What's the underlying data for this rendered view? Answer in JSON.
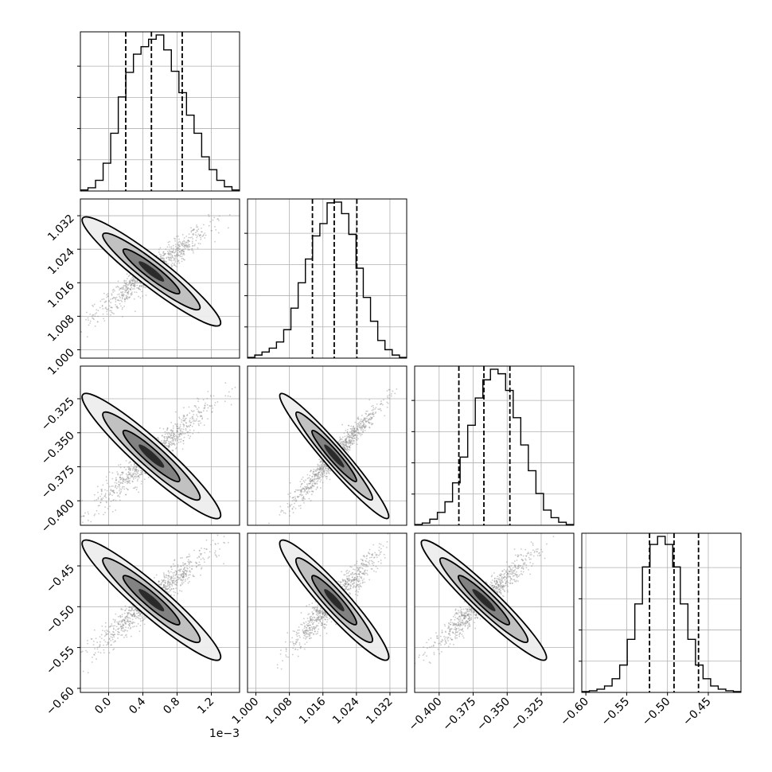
{
  "chart_data": {
    "type": "corner",
    "parameters": [
      {
        "ticks": [
          0.0,
          0.4,
          0.8,
          1.2
        ],
        "tick_labels": [
          "0.0",
          "0.4",
          "0.8",
          "1.2"
        ],
        "range": [
          -0.33,
          1.53
        ],
        "multiplier_label": "1e−3",
        "quantiles": [
          0.2,
          0.5,
          0.86
        ],
        "histogram": [
          0.5,
          1.5,
          5.0,
          13.0,
          27.0,
          44.0,
          55.5,
          64.0,
          67.5,
          71.0,
          73.0,
          66.0,
          56.0,
          46.0,
          35.5,
          27.0,
          16.0,
          10.0,
          5.0,
          2.0,
          0.5
        ]
      },
      {
        "ticks": [
          1.0,
          1.008,
          1.016,
          1.024,
          1.032
        ],
        "tick_labels": [
          "1.000",
          "1.008",
          "1.016",
          "1.024",
          "1.032"
        ],
        "range": [
          0.998,
          1.036
        ],
        "quantiles": [
          1.0135,
          1.0187,
          1.0241
        ],
        "histogram": [
          0.5,
          2.0,
          4.0,
          6.5,
          10.5,
          18.5,
          32.5,
          49.0,
          64.5,
          79.5,
          87.5,
          101.0,
          101.5,
          94.0,
          80.5,
          58.5,
          39.5,
          24.0,
          11.5,
          5.5,
          2.0,
          0.5
        ]
      },
      {
        "ticks": [
          -0.4,
          -0.375,
          -0.35,
          -0.325
        ],
        "tick_labels": [
          "−0.400",
          "−0.375",
          "−0.350",
          "−0.325"
        ],
        "range": [
          -0.418,
          -0.301
        ],
        "quantiles": [
          -0.3855,
          -0.3671,
          -0.348
        ],
        "histogram": [
          0.5,
          1.5,
          4.0,
          8.5,
          15.5,
          28.0,
          45.0,
          66.0,
          84.0,
          96.0,
          103.0,
          100.0,
          89.0,
          71.0,
          53.0,
          36.0,
          21.0,
          10.0,
          5.0,
          2.0,
          0.5
        ]
      },
      {
        "ticks": [
          -0.6,
          -0.55,
          -0.5,
          -0.45
        ],
        "tick_labels": [
          "−0.60",
          "−0.55",
          "−0.50",
          "−0.45"
        ],
        "range": [
          -0.605,
          -0.41
        ],
        "quantiles": [
          -0.522,
          -0.492,
          -0.462
        ],
        "histogram": [
          0.5,
          1.0,
          2.0,
          4.0,
          8.5,
          17.0,
          33.0,
          55.0,
          78.0,
          92.0,
          97.0,
          92.0,
          78.0,
          55.0,
          33.0,
          17.0,
          8.5,
          4.0,
          2.0,
          1.0,
          0.5
        ]
      }
    ],
    "correlations": [
      [
        1.0,
        0.95,
        0.95,
        0.95
      ],
      [
        0.95,
        1.0,
        0.97,
        0.95
      ],
      [
        0.95,
        0.97,
        1.0,
        0.96
      ],
      [
        0.95,
        0.95,
        0.96,
        1.0
      ]
    ],
    "quantile_line_style": "dashed",
    "contour_levels": 3,
    "grid": true
  }
}
